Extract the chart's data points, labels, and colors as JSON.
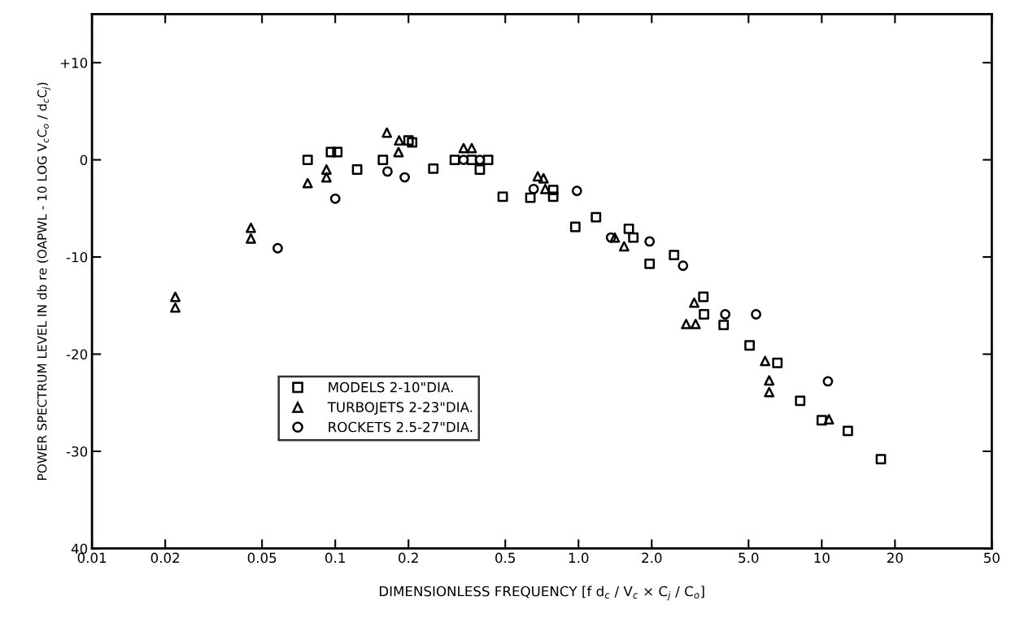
{
  "chart_data": {
    "type": "scatter",
    "xlabel": "DIMENSIONLESS FREQUENCY [f d$_{c}$ / V$_{c}$ × C$_{j}$ / C$_{o}$]",
    "ylabel": "POWER SPECTRUM LEVEL IN db re (OAPWL - 10 LOG V$_{c}$C$_{o}$ / d$_{c}$C$_{j}$)",
    "log": "x",
    "grid": false,
    "legend": "bottom left",
    "xlim": [
      0.01,
      50
    ],
    "xticks": [
      {
        "value": 0.01,
        "label": "0.01"
      },
      {
        "value": 0.02,
        "label": "0.02"
      },
      {
        "value": 0.05,
        "label": "0.05"
      },
      {
        "value": 0.1,
        "label": "0.1"
      },
      {
        "value": 0.2,
        "label": "0.2"
      },
      {
        "value": 0.5,
        "label": "0.5"
      },
      {
        "value": 1,
        "label": "1.0"
      },
      {
        "value": 2,
        "label": "2.0"
      },
      {
        "value": 5,
        "label": "5.0"
      },
      {
        "value": 10,
        "label": "10"
      },
      {
        "value": 20,
        "label": "20"
      },
      {
        "value": 50,
        "label": "50"
      }
    ],
    "ylim": [
      -40,
      15
    ],
    "yticks": [
      {
        "value": 10,
        "label": "+10"
      },
      0,
      -10,
      -20,
      -30,
      {
        "value": -40,
        "label": "40"
      }
    ],
    "series": [
      {
        "name": "MODELS 2-10\"DIA.",
        "color": "#000000",
        "marker": "square",
        "x": [
          0.077,
          0.096,
          0.102,
          0.123,
          0.157,
          0.2,
          0.207,
          0.253,
          0.31,
          0.364,
          0.425,
          0.393,
          0.488,
          0.634,
          0.787,
          0.787,
          0.97,
          1.18,
          1.61,
          1.68,
          1.96,
          2.47,
          3.26,
          3.28,
          3.95,
          5.05,
          6.57,
          8.15,
          10.0,
          12.8,
          17.5
        ],
        "values": [
          0,
          0.8,
          0.8,
          -1.0,
          0,
          2.0,
          1.8,
          -0.9,
          0,
          0,
          0,
          -1.0,
          -3.8,
          -3.9,
          -3.1,
          -3.8,
          -6.9,
          -5.9,
          -7.1,
          -8.0,
          -10.7,
          -9.8,
          -14.1,
          -15.9,
          -17.0,
          -19.1,
          -20.9,
          -24.8,
          -26.8,
          -27.9,
          -30.8
        ]
      },
      {
        "name": "TURBOJETS 2-23\"DIA.",
        "color": "#000000",
        "marker": "triangle",
        "x": [
          0.022,
          0.022,
          0.045,
          0.045,
          0.077,
          0.092,
          0.092,
          0.163,
          0.182,
          0.183,
          0.337,
          0.364,
          0.68,
          0.718,
          0.73,
          1.41,
          1.54,
          2.77,
          2.99,
          3.03,
          5.85,
          6.08,
          6.08,
          10.7
        ],
        "values": [
          -14.1,
          -15.2,
          -7.0,
          -8.1,
          -2.4,
          -1.0,
          -1.8,
          2.8,
          0.8,
          2.0,
          1.2,
          1.2,
          -1.7,
          -1.9,
          -3.0,
          -8.0,
          -8.9,
          -16.9,
          -14.7,
          -16.9,
          -20.7,
          -22.7,
          -23.9,
          -26.7
        ]
      },
      {
        "name": "ROCKETS 2.5-27\"DIA.",
        "color": "#000000",
        "marker": "circle",
        "x": [
          0.058,
          0.1,
          0.164,
          0.193,
          0.337,
          0.393,
          0.654,
          0.985,
          1.36,
          1.96,
          2.69,
          4.01,
          5.37,
          10.6
        ],
        "values": [
          -9.1,
          -4.0,
          -1.2,
          -1.8,
          0,
          0,
          -3.0,
          -3.2,
          -8.0,
          -8.4,
          -10.9,
          -15.9,
          -15.9,
          -22.8
        ]
      }
    ]
  }
}
